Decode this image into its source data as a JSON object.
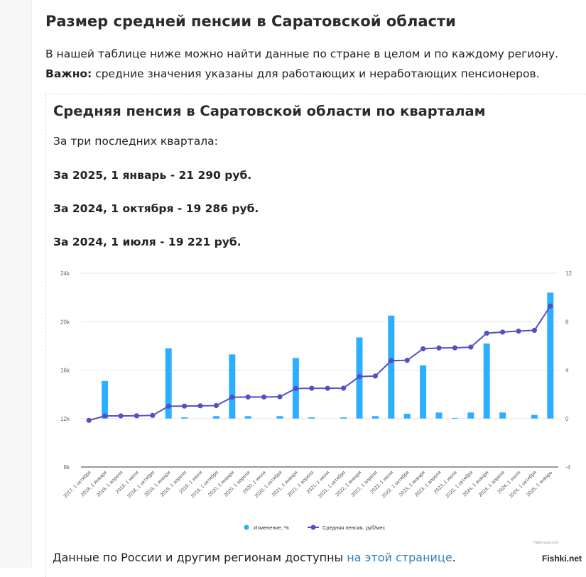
{
  "page": {
    "title": "Размер средней пенсии в Саратовской области",
    "intro_line1": "В нашей таблице ниже можно найти данные по стране в целом и по каждому региону.",
    "intro_bold": "Важно:",
    "intro_line2": " средние значения указаны для работающих и неработающих пенсионеров."
  },
  "card": {
    "title": "Средняя пенсия в Саратовской области по кварталам",
    "subtitle": "За три последних квартала:",
    "stats": [
      "За 2025, 1 январь - 21 290 руб.",
      "За 2024, 1 октября - 19 286 руб.",
      "За 2024, 1 июля - 19 221 руб."
    ]
  },
  "footer": {
    "text": "Данные по России и другим регионам доступны ",
    "link": "на этой странице",
    "end": "."
  },
  "watermark": "Fishki.net",
  "credit": "Highcharts.com",
  "colors": {
    "bar": "#2caffe",
    "line": "#544fc5",
    "link": "#2f7fbf"
  },
  "chart_data": {
    "type": "bar+line",
    "categories": [
      "2017, 1 октября",
      "2018, 1 января",
      "2018, 1 апреля",
      "2018, 1 июля",
      "2018, 1 октября",
      "2019, 1 января",
      "2019, 1 апреля",
      "2019, 1 июля",
      "2019, 1 октября",
      "2020, 1 января",
      "2020, 1 апреля",
      "2020, 1 июля",
      "2020, 1 октября",
      "2021, 1 января",
      "2021, 1 апреля",
      "2021, 1 июля",
      "2021, 1 октября",
      "2022, 1 января",
      "2022, 1 апреля",
      "2022, 1 июля",
      "2022, 1 октября",
      "2023, 1 января",
      "2023, 1 апреля",
      "2023, 1 июля",
      "2023, 1 октября",
      "2024, 1 января",
      "2024, 1 апреля",
      "2024, 1 июля",
      "2024, 1 октября",
      "2025, 1 январь"
    ],
    "series": [
      {
        "name": "Изменение, %",
        "type": "column",
        "axis": "right",
        "values": [
          0,
          3.1,
          0,
          0,
          0,
          5.8,
          0.1,
          0,
          0.2,
          5.3,
          0.2,
          0,
          0.2,
          5.0,
          0.1,
          0,
          0.1,
          6.7,
          0.2,
          8.5,
          0.4,
          4.4,
          0.5,
          0.05,
          0.5,
          6.2,
          0.5,
          0,
          0.3,
          10.4
        ]
      },
      {
        "name": "Средняя пенсия, руб/мес",
        "type": "line",
        "axis": "left",
        "values": [
          11850,
          12220,
          12220,
          12230,
          12260,
          13020,
          13030,
          13050,
          13070,
          13760,
          13780,
          13780,
          13800,
          14480,
          14500,
          14500,
          14510,
          15470,
          15510,
          16780,
          16810,
          17760,
          17830,
          17840,
          17900,
          19050,
          19140,
          19221,
          19286,
          21290
        ]
      }
    ],
    "y_left": {
      "min": 8000,
      "max": 24000,
      "ticks": [
        "8k",
        "12k",
        "16k",
        "20k",
        "24k"
      ]
    },
    "y_right": {
      "min": -4,
      "max": 12,
      "ticks": [
        "-4",
        "0",
        "4",
        "8",
        "12"
      ]
    },
    "grid": true,
    "legend": "bottom-center"
  }
}
